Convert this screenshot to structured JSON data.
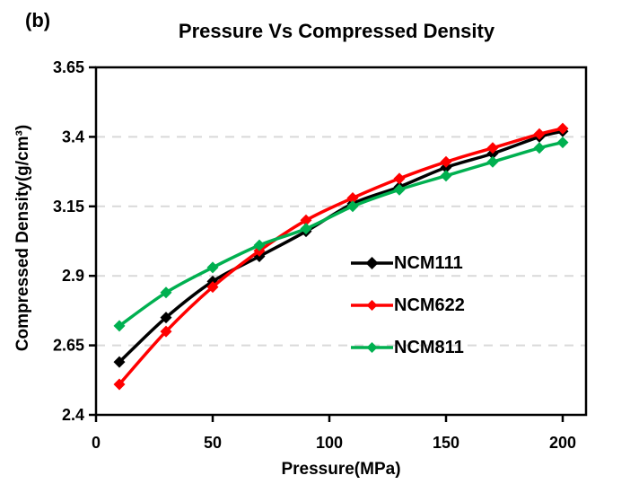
{
  "figure_label": "(b)",
  "chart_data": {
    "type": "line",
    "title": "Pressure Vs Compressed Density",
    "xlabel": "Pressure(MPa)",
    "ylabel": "Compressed Density(g/cm³)",
    "x": [
      10,
      30,
      50,
      70,
      90,
      110,
      130,
      150,
      170,
      190,
      200
    ],
    "series": [
      {
        "name": "NCM111",
        "color": "#000000",
        "marker": "diamond",
        "values": [
          2.59,
          2.75,
          2.88,
          2.97,
          3.06,
          3.16,
          3.22,
          3.29,
          3.34,
          3.4,
          3.42
        ]
      },
      {
        "name": "NCM622",
        "color": "#FF0000",
        "marker": "diamond",
        "values": [
          2.51,
          2.7,
          2.86,
          2.99,
          3.1,
          3.18,
          3.25,
          3.31,
          3.36,
          3.41,
          3.43
        ]
      },
      {
        "name": "NCM811",
        "color": "#00B050",
        "marker": "diamond",
        "values": [
          2.72,
          2.84,
          2.93,
          3.01,
          3.07,
          3.15,
          3.21,
          3.26,
          3.31,
          3.36,
          3.38
        ]
      }
    ],
    "xlim": [
      0,
      210
    ],
    "ylim": [
      2.4,
      3.65
    ],
    "xticks": [
      0,
      50,
      100,
      150,
      200
    ],
    "yticks": [
      2.4,
      2.65,
      2.9,
      3.15,
      3.4,
      3.65
    ],
    "grid": "horizontal-dashed",
    "grid_color": "#D9D9D9",
    "axis_color": "#000000",
    "legend_position": "inside-middle-right",
    "line_style": "smooth"
  }
}
